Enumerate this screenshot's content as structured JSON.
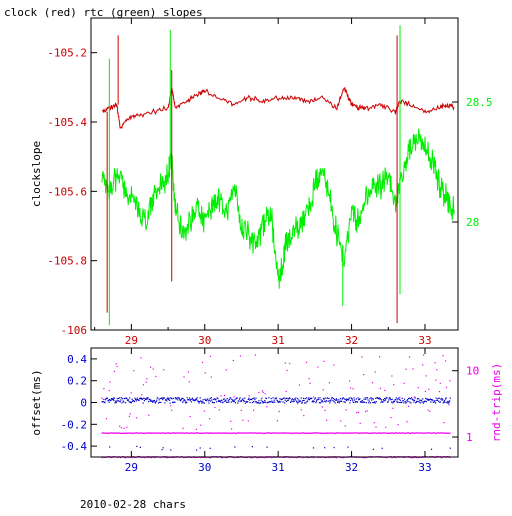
{
  "title": "clock (red) rtc (green) slopes",
  "footer": "2010-02-28 chars",
  "colors": {
    "red": "#cc0000",
    "green": "#00ee00",
    "blue": "#0000cc",
    "magenta": "#ee00ee",
    "axis": "#000000"
  },
  "chart_data": [
    {
      "type": "line",
      "title": "clock (red) rtc (green) slopes",
      "ylabel": "clockslope",
      "xlim": [
        28.45,
        33.45
      ],
      "ylim": [
        -106.0,
        -105.1
      ],
      "y2lim": [
        27.55,
        28.85
      ],
      "xticks": [
        29,
        30,
        31,
        32,
        33
      ],
      "yticks": [
        -105.2,
        -105.4,
        -105.6,
        -105.8,
        -106
      ],
      "ytick_labels": [
        "-105.2",
        "-105.4",
        "-105.6",
        "-105.8",
        "-106"
      ],
      "y2ticks": [
        28.5,
        28
      ],
      "y2tick_labels": [
        "28.5",
        "28"
      ],
      "series": [
        {
          "color": "red",
          "axis": "left",
          "x": [
            28.6,
            28.7,
            28.8,
            28.85,
            28.95,
            29.1,
            29.3,
            29.5,
            29.55,
            29.6,
            29.75,
            29.9,
            30.0,
            30.2,
            30.4,
            30.6,
            30.8,
            31.0,
            31.2,
            31.4,
            31.6,
            31.8,
            31.9,
            32.0,
            32.1,
            32.2,
            32.4,
            32.6,
            32.65,
            32.8,
            33.0,
            33.2,
            33.3,
            33.4
          ],
          "y": [
            -105.37,
            -105.36,
            -105.35,
            -105.42,
            -105.39,
            -105.38,
            -105.37,
            -105.36,
            -105.3,
            -105.36,
            -105.34,
            -105.32,
            -105.31,
            -105.33,
            -105.35,
            -105.33,
            -105.34,
            -105.33,
            -105.33,
            -105.34,
            -105.33,
            -105.36,
            -105.3,
            -105.35,
            -105.36,
            -105.36,
            -105.35,
            -105.37,
            -105.34,
            -105.35,
            -105.37,
            -105.36,
            -105.35,
            -105.36
          ]
        },
        {
          "color": "green",
          "axis": "right",
          "x": [
            28.6,
            28.7,
            28.8,
            28.9,
            29.0,
            29.1,
            29.2,
            29.3,
            29.4,
            29.5,
            29.55,
            29.6,
            29.7,
            29.8,
            29.9,
            30.0,
            30.1,
            30.2,
            30.3,
            30.4,
            30.5,
            30.6,
            30.7,
            30.8,
            30.9,
            31.0,
            31.05,
            31.1,
            31.2,
            31.3,
            31.4,
            31.5,
            31.6,
            31.7,
            31.8,
            31.9,
            32.0,
            32.1,
            32.2,
            32.3,
            32.4,
            32.5,
            32.6,
            32.7,
            32.8,
            32.9,
            33.0,
            33.1,
            33.2,
            33.3,
            33.4
          ],
          "y": [
            28.2,
            28.1,
            28.2,
            28.15,
            28.1,
            28.05,
            28.0,
            28.1,
            28.15,
            28.2,
            28.25,
            28.05,
            27.95,
            28.0,
            28.05,
            28.0,
            28.05,
            28.1,
            28.05,
            28.15,
            28.0,
            27.95,
            27.9,
            28.0,
            28.05,
            27.75,
            27.8,
            27.9,
            27.95,
            28.0,
            28.05,
            28.15,
            28.2,
            28.1,
            27.95,
            27.85,
            28.05,
            28.0,
            28.1,
            28.15,
            28.15,
            28.2,
            28.1,
            28.2,
            28.3,
            28.35,
            28.3,
            28.25,
            28.15,
            28.1,
            28.05
          ]
        }
      ],
      "spikes": [
        {
          "color": "red",
          "x": 28.67,
          "y_from": -105.37,
          "y_to": -105.95
        },
        {
          "color": "red",
          "x": 28.82,
          "y_from": -105.35,
          "y_to": -105.15
        },
        {
          "color": "red",
          "x": 29.55,
          "y_from": -105.25,
          "y_to": -105.86
        },
        {
          "color": "red",
          "x": 32.62,
          "y_from": -105.15,
          "y_to": -105.98
        },
        {
          "color": "green",
          "x": 28.7,
          "y_from": 28.1,
          "y_to": 28.68
        },
        {
          "color": "green",
          "x": 28.7,
          "y_from": 28.1,
          "y_to": 27.57
        },
        {
          "color": "green",
          "x": 29.53,
          "y_from": 28.25,
          "y_to": 28.8
        },
        {
          "color": "green",
          "x": 31.88,
          "y_from": 27.9,
          "y_to": 27.65
        },
        {
          "color": "green",
          "x": 32.66,
          "y_from": 28.1,
          "y_to": 28.82
        },
        {
          "color": "green",
          "x": 32.66,
          "y_from": 28.1,
          "y_to": 27.7
        }
      ]
    },
    {
      "type": "scatter",
      "ylabel": "offset(ms)",
      "y2label": "rnd-trip(ms)",
      "xlim": [
        28.45,
        33.45
      ],
      "ylim": [
        -0.5,
        0.5
      ],
      "y2lim": [
        0.5,
        22
      ],
      "y2scale": "log",
      "xticks": [
        29,
        30,
        31,
        32,
        33
      ],
      "yticks": [
        0.4,
        0.2,
        0,
        -0.2,
        -0.4
      ],
      "ytick_labels": [
        "0.4",
        "0.2",
        "0",
        "-0.2",
        "-0.4"
      ],
      "y2ticks": [
        10,
        1
      ],
      "y2tick_labels": [
        "10",
        "1"
      ],
      "series": [
        {
          "color": "blue",
          "axis": "left",
          "base": 0.02,
          "noise": 0.025,
          "band": "offset"
        },
        {
          "color": "magenta",
          "axis": "right",
          "band_values": [
            1.15,
            0.5
          ],
          "scatter_range": [
            1.3,
            18
          ]
        }
      ]
    }
  ]
}
